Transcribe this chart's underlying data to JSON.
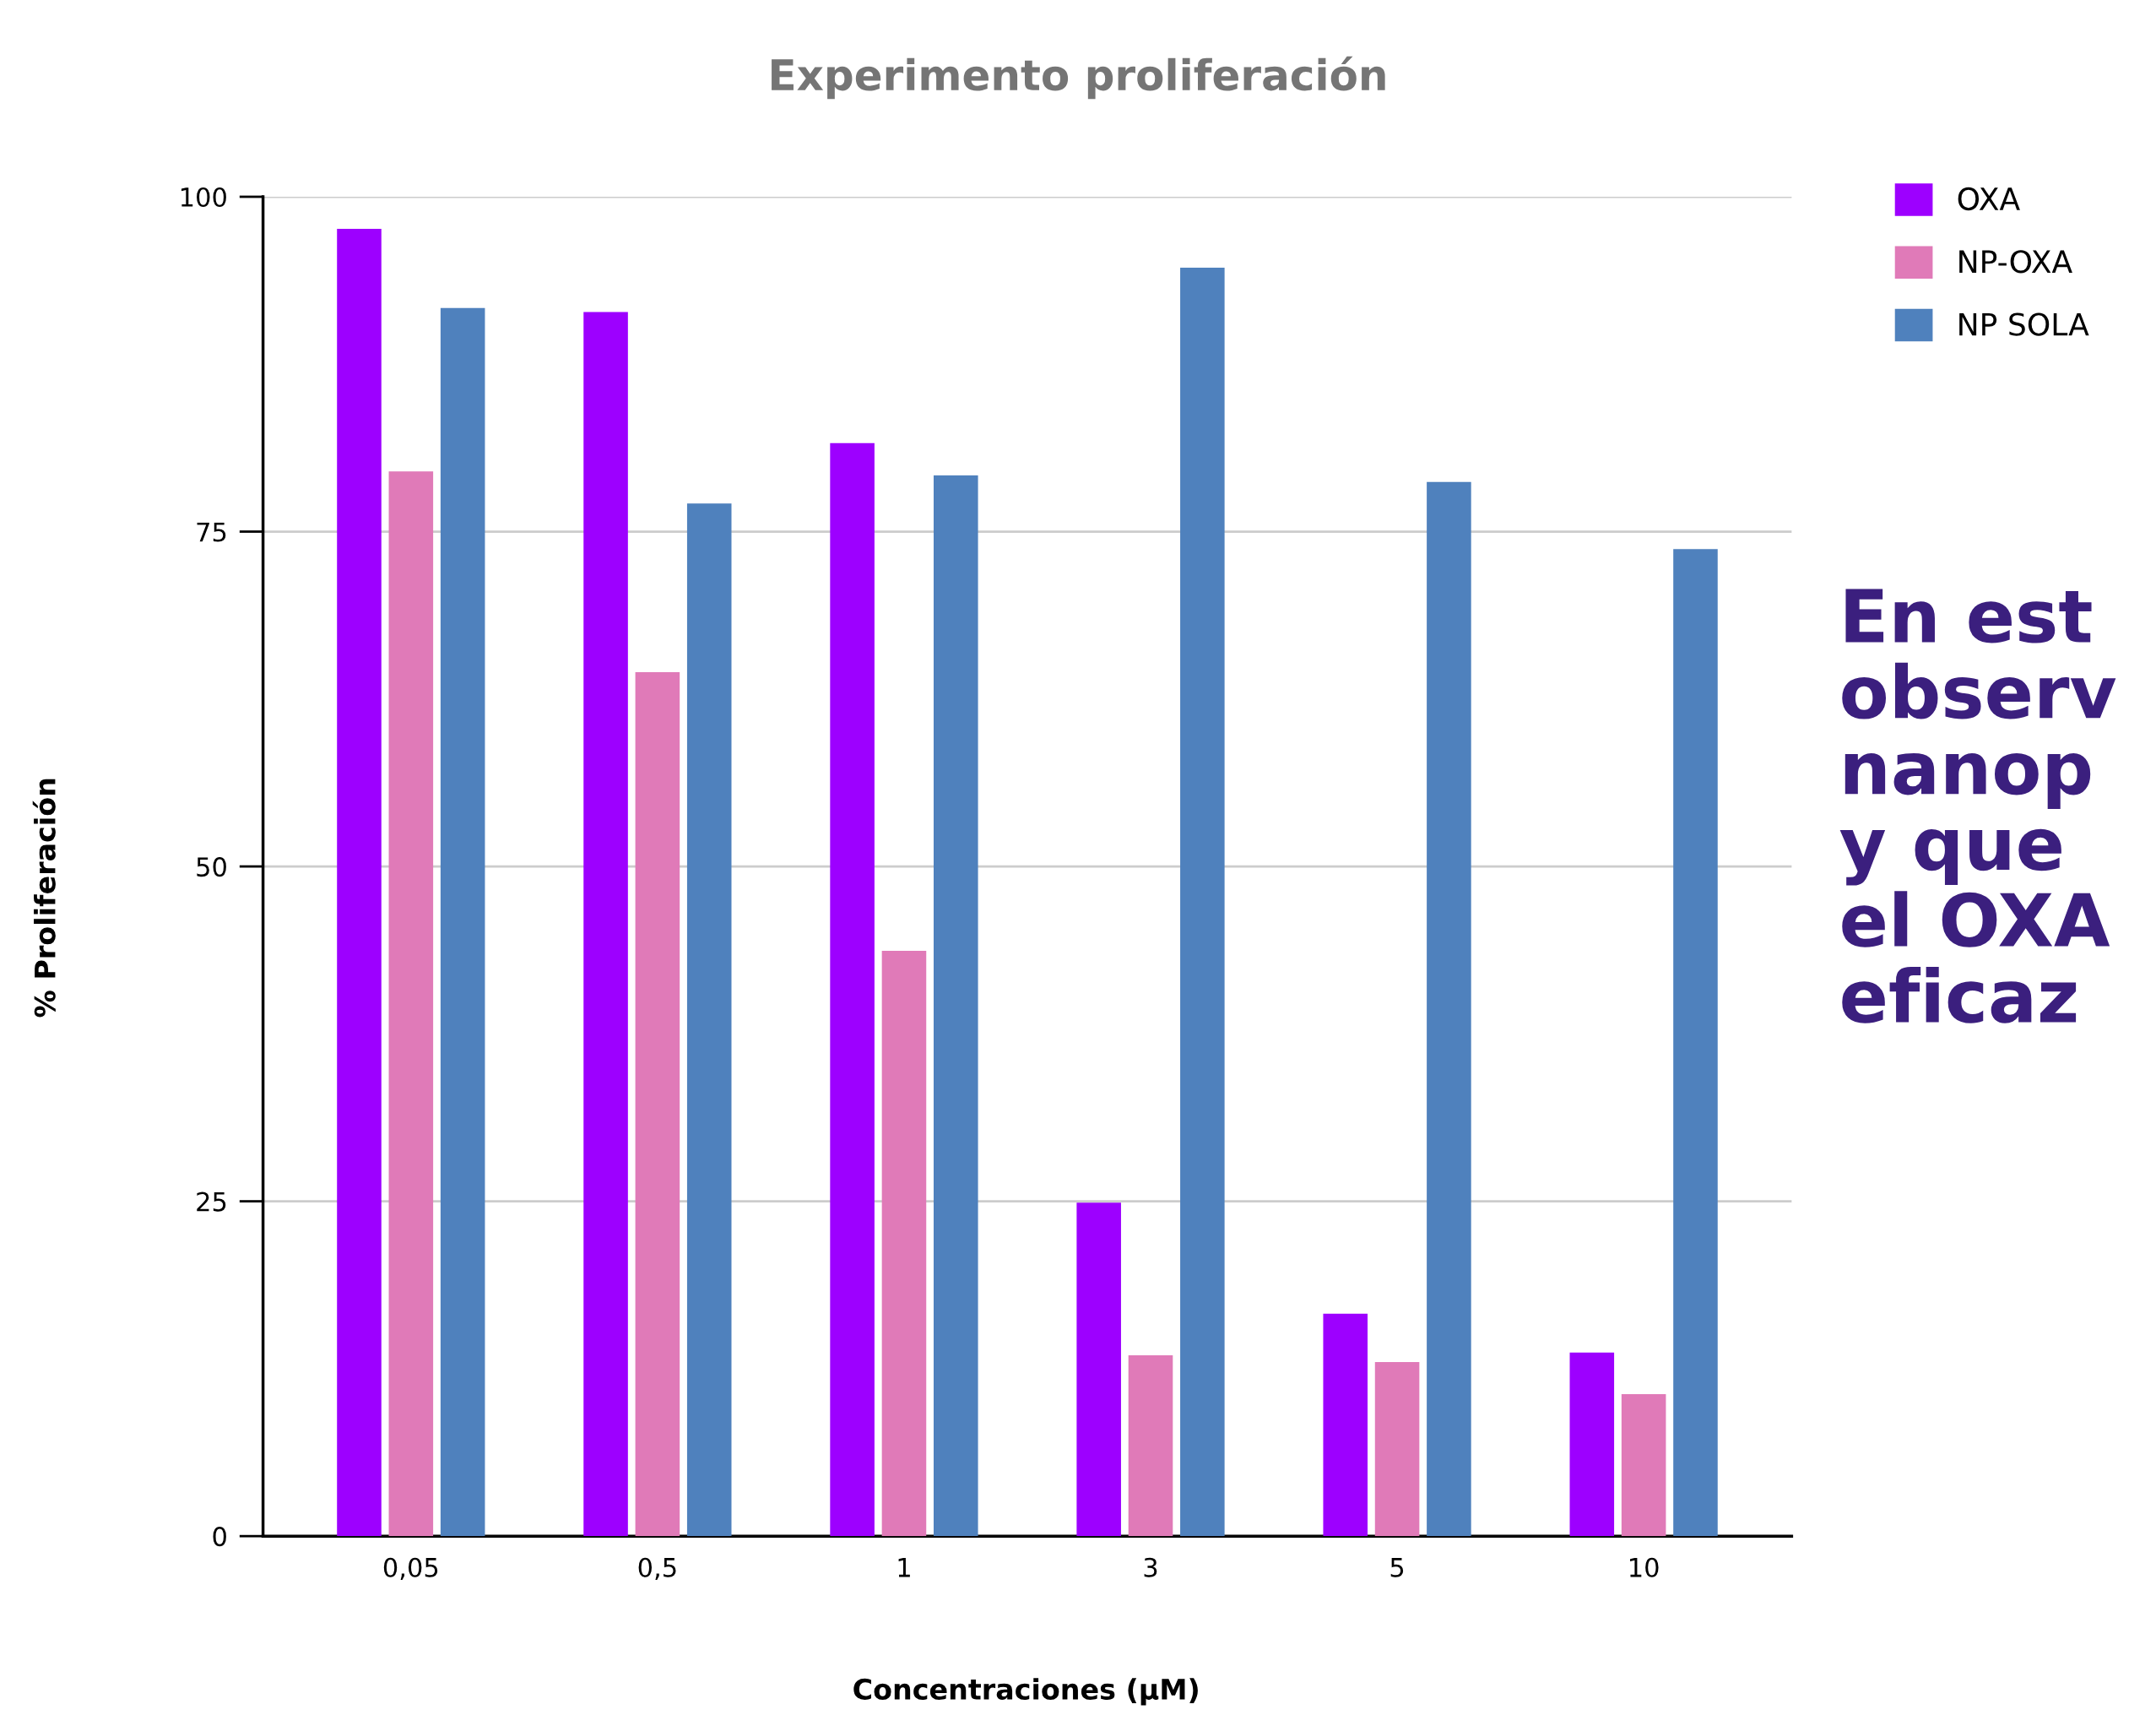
{
  "chart_data": {
    "type": "bar",
    "title": "Experimento proliferación",
    "xlabel": "Concentraciones (µM)",
    "ylabel": "% Proliferación",
    "categories": [
      "0,05",
      "0,5",
      "1",
      "3",
      "5",
      "10"
    ],
    "series": [
      {
        "name": "OXA",
        "color": "#9d00ff",
        "values": [
          97.6,
          91.4,
          81.6,
          24.9,
          16.6,
          13.7
        ]
      },
      {
        "name": "NP-OXA",
        "color": "#e07ab8",
        "values": [
          79.5,
          64.5,
          43.7,
          13.5,
          13.0,
          10.6
        ]
      },
      {
        "name": "NP SOLA",
        "color": "#4f81bd",
        "values": [
          91.7,
          77.1,
          79.2,
          94.7,
          78.7,
          73.7
        ]
      }
    ],
    "ylim": [
      0,
      100
    ],
    "yticks": [
      0,
      25,
      50,
      75,
      100
    ],
    "grid": "y",
    "legend": "top right",
    "annotations": [
      "En est\nobserv\nnanop\ny que\nel OXA\neficaz"
    ]
  }
}
